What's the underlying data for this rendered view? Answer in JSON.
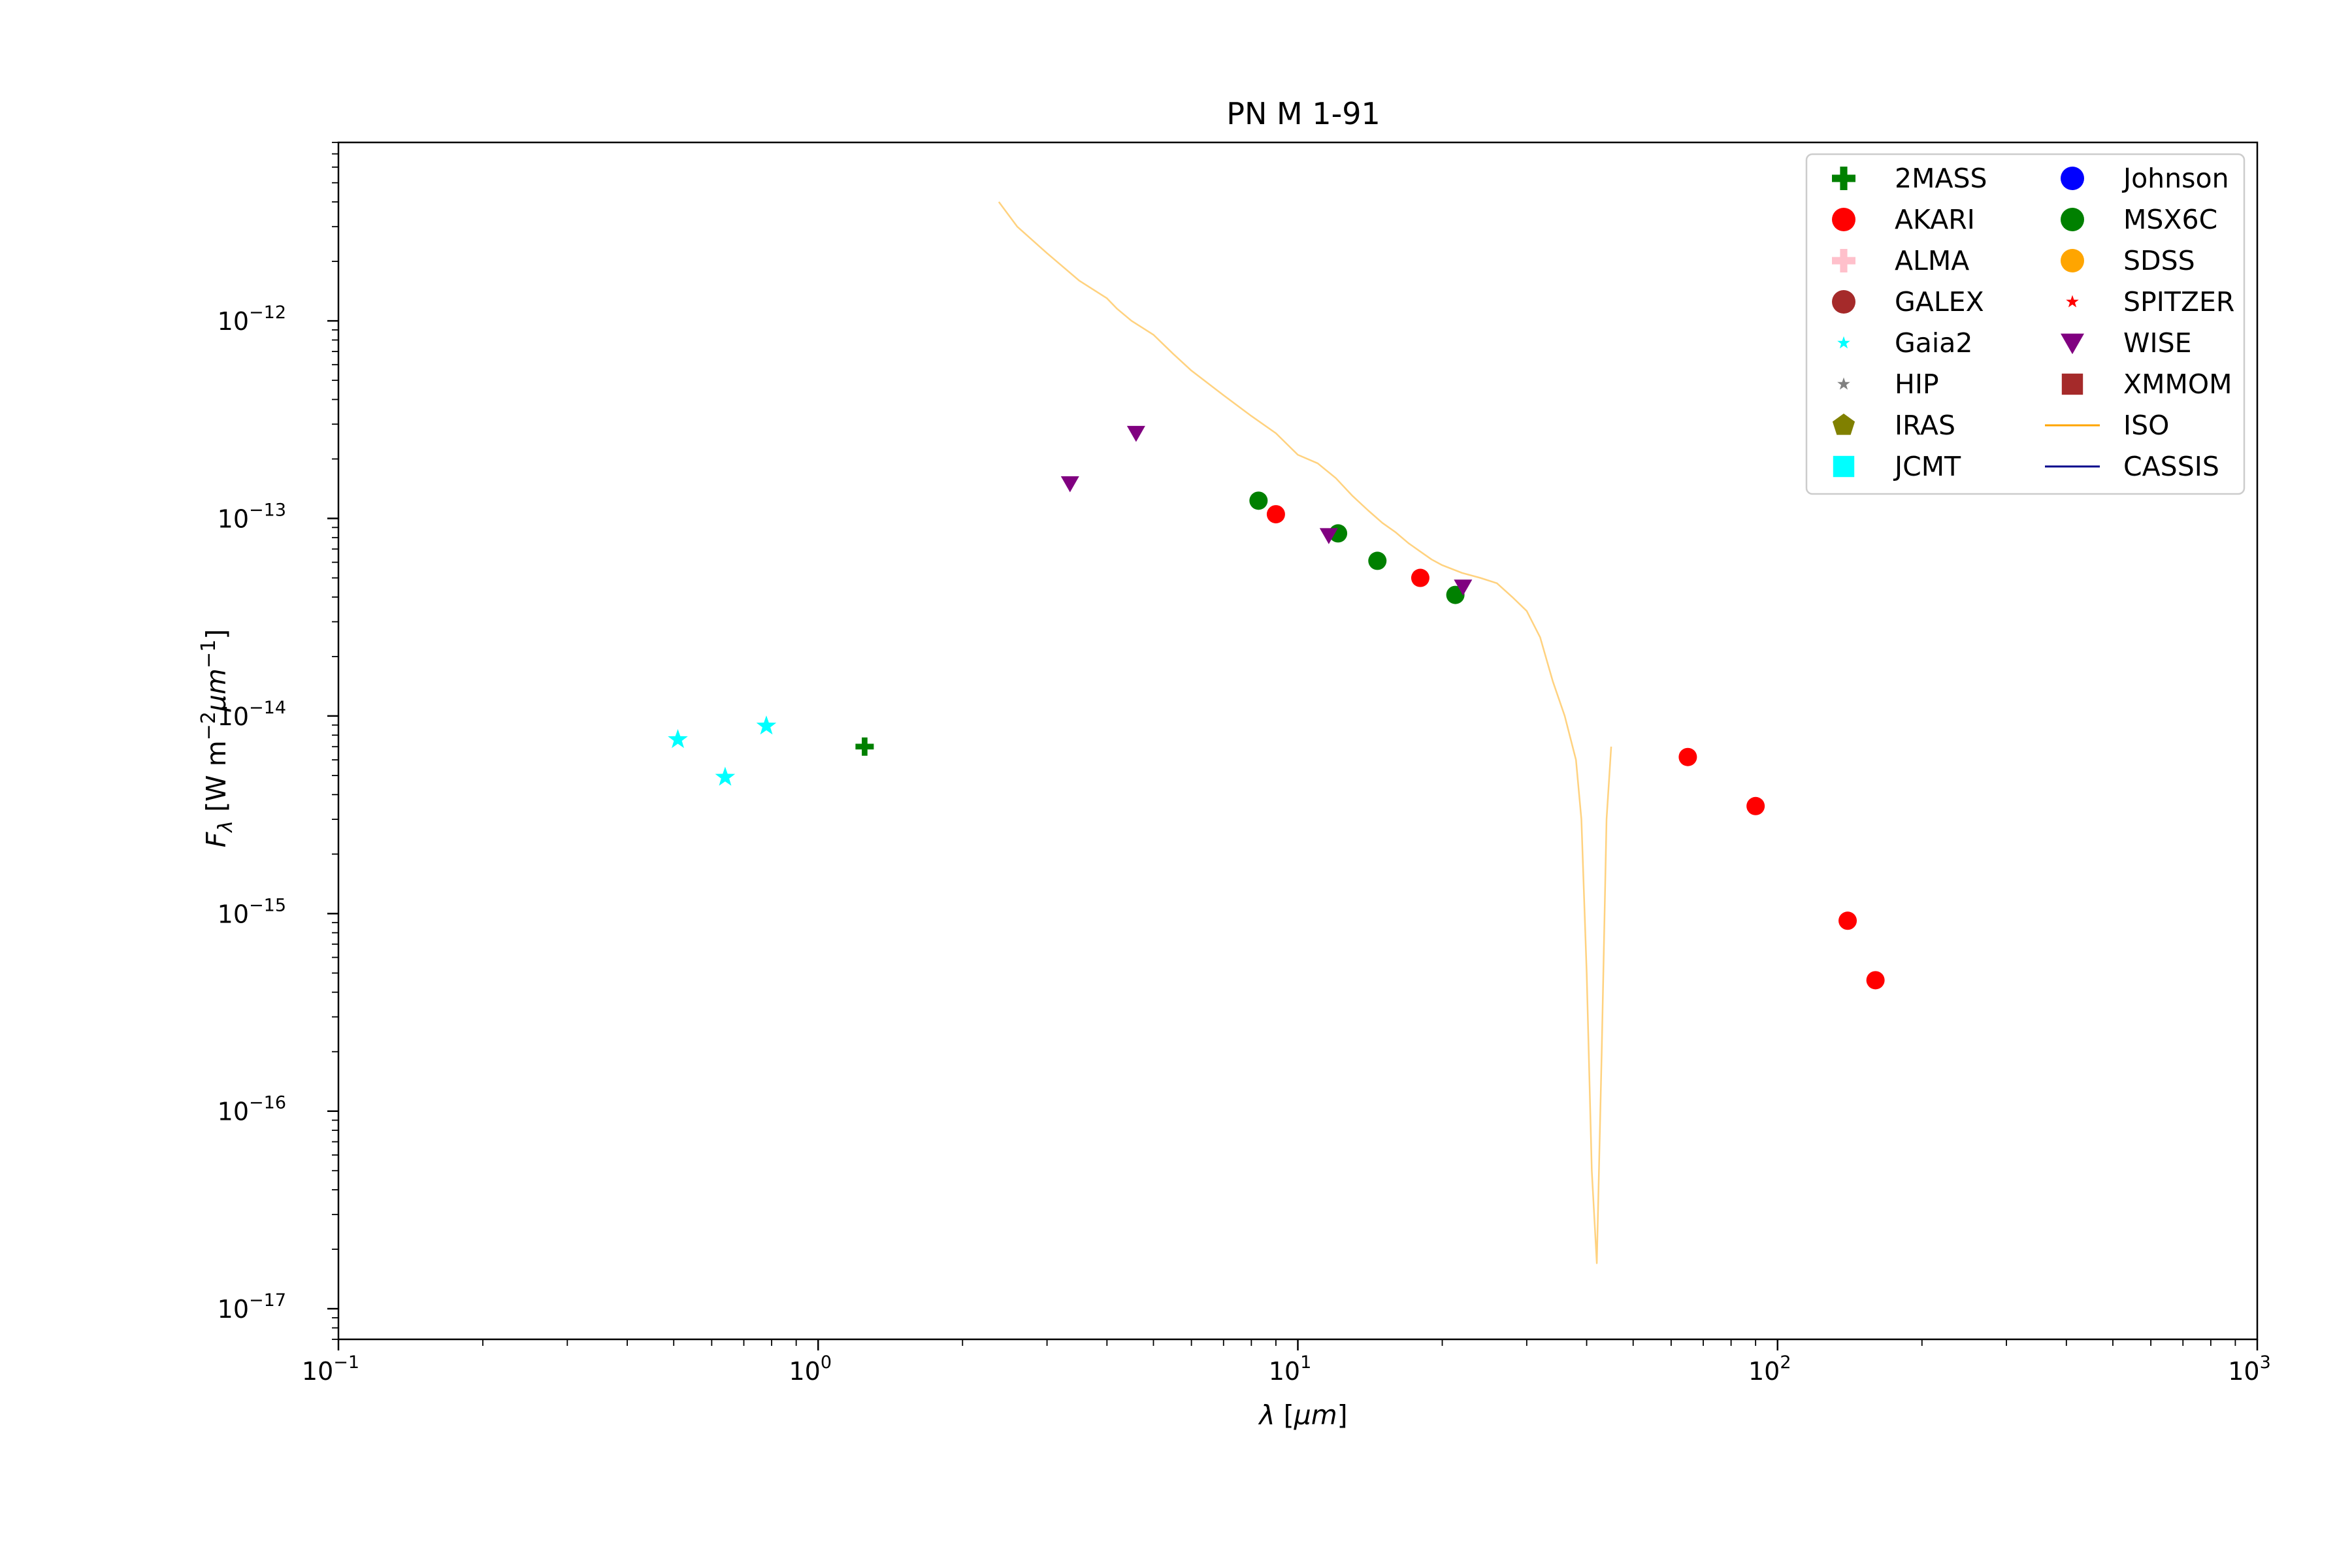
{
  "chart_data": {
    "type": "scatter",
    "title": "PN M 1-91",
    "xlabel": "λ [μm]",
    "ylabel": "Fλ [W m⁻²μm⁻¹]",
    "x_scale": "log",
    "y_scale": "log",
    "xlim": [
      0.1,
      1000
    ],
    "ylim": [
      7e-18,
      8e-12
    ],
    "grid": false,
    "legend_position": "top-right",
    "x_ticks": [
      {
        "value": 0.1,
        "base": "10",
        "exp": "−1"
      },
      {
        "value": 1,
        "base": "10",
        "exp": "0"
      },
      {
        "value": 10,
        "base": "10",
        "exp": "1"
      },
      {
        "value": 100,
        "base": "10",
        "exp": "2"
      },
      {
        "value": 1000,
        "base": "10",
        "exp": "3"
      }
    ],
    "y_ticks": [
      {
        "value": 1e-17,
        "base": "10",
        "exp": "−17"
      },
      {
        "value": 1e-16,
        "base": "10",
        "exp": "−16"
      },
      {
        "value": 1e-15,
        "base": "10",
        "exp": "−15"
      },
      {
        "value": 1e-14,
        "base": "10",
        "exp": "−14"
      },
      {
        "value": 1e-13,
        "base": "10",
        "exp": "−13"
      },
      {
        "value": 1e-12,
        "base": "10",
        "exp": "−12"
      }
    ],
    "series": [
      {
        "name": "2MASS",
        "marker": "plus",
        "color": "#008000",
        "points": [
          [
            1.25,
            7e-15
          ]
        ]
      },
      {
        "name": "AKARI",
        "marker": "circle",
        "color": "#ff0000",
        "points": [
          [
            9.0,
            1.05e-13
          ],
          [
            18.0,
            5e-14
          ],
          [
            65.0,
            6.2e-15
          ],
          [
            90.0,
            3.5e-15
          ],
          [
            140.0,
            9.2e-16
          ],
          [
            160.0,
            4.6e-16
          ]
        ]
      },
      {
        "name": "ALMA",
        "marker": "plus",
        "color": "#ffc0cb",
        "points": []
      },
      {
        "name": "GALEX",
        "marker": "circle",
        "color": "#a52a2a",
        "points": []
      },
      {
        "name": "Gaia2",
        "marker": "star",
        "color": "#00ffff",
        "points": [
          [
            0.51,
            7.6e-15
          ],
          [
            0.64,
            4.9e-15
          ],
          [
            0.78,
            8.9e-15
          ]
        ]
      },
      {
        "name": "HIP",
        "marker": "star",
        "color": "#808080",
        "points": []
      },
      {
        "name": "IRAS",
        "marker": "pentagon",
        "color": "#808000",
        "points": []
      },
      {
        "name": "JCMT",
        "marker": "square",
        "color": "#00ffff",
        "points": []
      },
      {
        "name": "Johnson",
        "marker": "circle",
        "color": "#0000ff",
        "points": []
      },
      {
        "name": "MSX6C",
        "marker": "circle",
        "color": "#008000",
        "points": [
          [
            8.28,
            1.23e-13
          ],
          [
            12.13,
            8.4e-14
          ],
          [
            14.65,
            6.1e-14
          ],
          [
            21.3,
            4.1e-14
          ]
        ]
      },
      {
        "name": "SDSS",
        "marker": "circle",
        "color": "#ffa500",
        "points": []
      },
      {
        "name": "SPITZER",
        "marker": "star",
        "color": "#ff0000",
        "points": []
      },
      {
        "name": "WISE",
        "marker": "triangle-down",
        "color": "#800080",
        "points": [
          [
            3.35,
            1.5e-13
          ],
          [
            4.6,
            2.7e-13
          ],
          [
            11.6,
            8.2e-14
          ],
          [
            22.1,
            4.5e-14
          ]
        ]
      },
      {
        "name": "XMMOM",
        "marker": "square",
        "color": "#a52a2a",
        "points": []
      },
      {
        "name": "ISO",
        "marker": "line",
        "color": "#ffa500",
        "alpha": 0.5,
        "points": [
          [
            2.38,
            4e-12
          ],
          [
            2.6,
            3e-12
          ],
          [
            3.0,
            2.2e-12
          ],
          [
            3.5,
            1.6e-12
          ],
          [
            4.0,
            1.3e-12
          ],
          [
            4.2,
            1.15e-12
          ],
          [
            4.5,
            1e-12
          ],
          [
            5.0,
            8.5e-13
          ],
          [
            5.5,
            6.8e-13
          ],
          [
            6.0,
            5.6e-13
          ],
          [
            7.0,
            4.2e-13
          ],
          [
            8.0,
            3.3e-13
          ],
          [
            9.0,
            2.7e-13
          ],
          [
            10.0,
            2.1e-13
          ],
          [
            11.0,
            1.9e-13
          ],
          [
            12.0,
            1.6e-13
          ],
          [
            13.0,
            1.3e-13
          ],
          [
            14.0,
            1.1e-13
          ],
          [
            15.0,
            9.5e-14
          ],
          [
            16.0,
            8.5e-14
          ],
          [
            17.0,
            7.5e-14
          ],
          [
            18.0,
            6.8e-14
          ],
          [
            19.0,
            6.2e-14
          ],
          [
            20.0,
            5.8e-14
          ],
          [
            22.0,
            5.3e-14
          ],
          [
            24.0,
            5e-14
          ],
          [
            26.0,
            4.7e-14
          ],
          [
            28.0,
            4e-14
          ],
          [
            30.0,
            3.4e-14
          ],
          [
            32.0,
            2.5e-14
          ],
          [
            34.0,
            1.5e-14
          ],
          [
            36.0,
            1e-14
          ],
          [
            38.0,
            6e-15
          ],
          [
            39.0,
            3e-15
          ],
          [
            40.0,
            5e-16
          ],
          [
            41.0,
            5e-17
          ],
          [
            42.0,
            1.7e-17
          ],
          [
            43.0,
            2e-16
          ],
          [
            44.0,
            3e-15
          ],
          [
            45.0,
            7e-15
          ]
        ]
      },
      {
        "name": "CASSIS",
        "marker": "line",
        "color": "#00008b",
        "points": []
      }
    ]
  }
}
